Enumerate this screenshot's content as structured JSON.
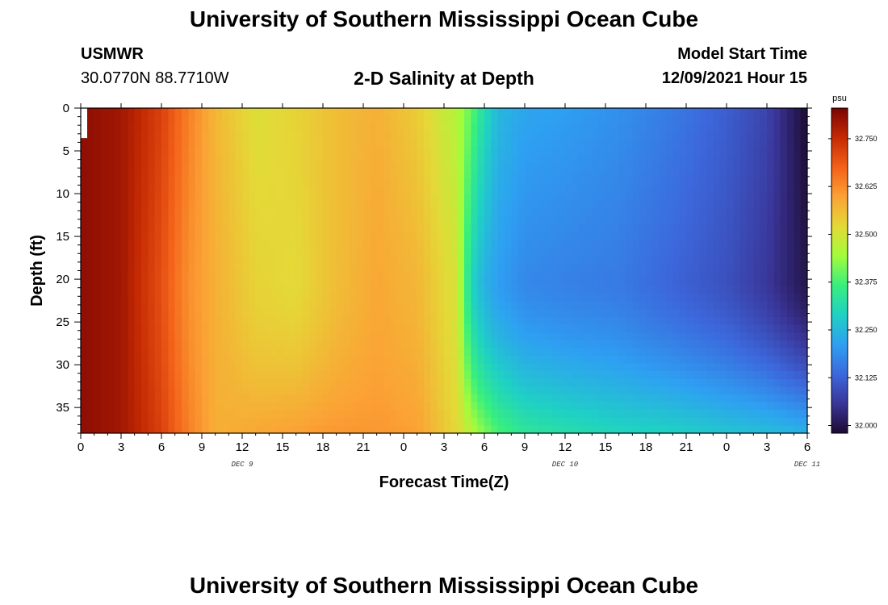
{
  "page": {
    "title": "University of Southern Mississippi Ocean Cube",
    "station": "USMWR",
    "coordinates": "30.0770N  88.7710W",
    "subtitle": "2-D Salinity at Depth",
    "model_start_label": "Model Start Time",
    "model_start_value": "12/09/2021 Hour 15",
    "footer_title": "University of Southern Mississippi Ocean Cube"
  },
  "chart_data": {
    "type": "heatmap",
    "title": "2-D Salinity at Depth",
    "xlabel": "Forecast Time(Z)",
    "ylabel": "Depth (ft)",
    "x_ticks": [
      "0",
      "3",
      "6",
      "9",
      "12",
      "15",
      "18",
      "21",
      "0",
      "3",
      "6",
      "9",
      "12",
      "15",
      "18",
      "21",
      "0",
      "3",
      "6"
    ],
    "x_day_labels": [
      {
        "label": "DEC 9",
        "hour": 12
      },
      {
        "label": "DEC 10",
        "hour": 36
      },
      {
        "label": "DEC 11",
        "hour": 54
      }
    ],
    "x_range_hours": [
      0,
      54
    ],
    "y_ticks": [
      0,
      5,
      10,
      15,
      20,
      25,
      30,
      35
    ],
    "ylim": [
      38,
      0
    ],
    "colorbar": {
      "unit": "psu",
      "range": [
        31.98,
        32.83
      ],
      "ticks": [
        "32.000",
        "32.125",
        "32.250",
        "32.375",
        "32.500",
        "32.625",
        "32.750"
      ],
      "colors": [
        "#1c0a30",
        "#3a3598",
        "#3c68dc",
        "#2ea0f2",
        "#1fd1c4",
        "#38ef7d",
        "#a2fc3c",
        "#e4d937",
        "#fba235",
        "#f36119",
        "#c52a03",
        "#7a0403"
      ]
    },
    "missing_data": {
      "hours": [
        0,
        0.3
      ],
      "depth_ft": [
        0,
        3.5
      ]
    },
    "salinity_by_time": {
      "time_hours": [
        0,
        3,
        6,
        8,
        10,
        13,
        16,
        19,
        22,
        25,
        28,
        29,
        30,
        31,
        33,
        36,
        40,
        44,
        48,
        51,
        54
      ],
      "surface_psu": [
        32.81,
        32.79,
        32.72,
        32.64,
        32.57,
        32.51,
        32.53,
        32.56,
        32.58,
        32.54,
        32.46,
        32.4,
        32.31,
        32.25,
        32.22,
        32.21,
        32.19,
        32.16,
        32.12,
        32.08,
        31.98
      ],
      "depth_20ft_psu": [
        32.81,
        32.79,
        32.7,
        32.62,
        32.58,
        32.53,
        32.52,
        32.56,
        32.59,
        32.57,
        32.5,
        32.3,
        32.24,
        32.21,
        32.18,
        32.17,
        32.16,
        32.13,
        32.1,
        32.06,
        32.0
      ],
      "bottom_38ft_psu": [
        32.81,
        32.79,
        32.72,
        32.64,
        32.58,
        32.59,
        32.6,
        32.61,
        32.61,
        32.6,
        32.52,
        32.47,
        32.42,
        32.38,
        32.34,
        32.32,
        32.3,
        32.29,
        32.27,
        32.26,
        32.24
      ]
    }
  }
}
